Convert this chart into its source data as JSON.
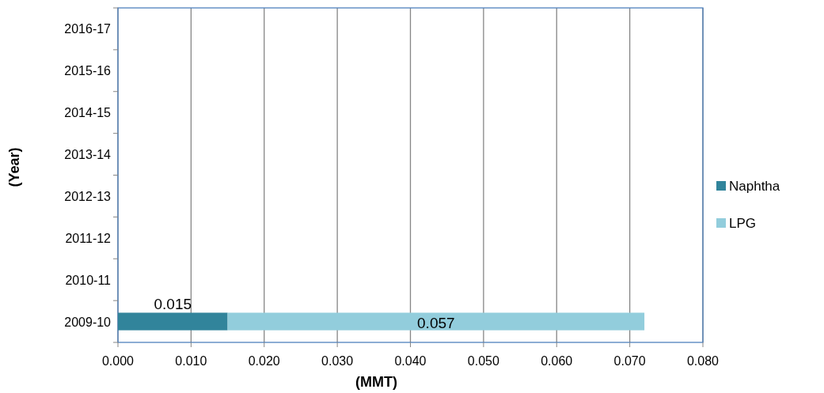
{
  "chart_data": {
    "type": "bar",
    "orientation": "horizontal",
    "stacked": true,
    "xlabel": "(MMT)",
    "ylabel": "(Year)",
    "categories": [
      "2016-17",
      "2015-16",
      "2014-15",
      "2013-14",
      "2012-13",
      "2011-12",
      "2010-11",
      "2009-10"
    ],
    "series": [
      {
        "name": "Naphtha",
        "color": "#31849b",
        "values": [
          null,
          null,
          null,
          null,
          null,
          null,
          null,
          0.015
        ]
      },
      {
        "name": "LPG",
        "color": "#92cddc",
        "values": [
          null,
          null,
          null,
          null,
          null,
          null,
          null,
          0.057
        ]
      }
    ],
    "xlim": [
      0,
      0.08
    ],
    "xticks": [
      {
        "value": 0,
        "label": "0.000"
      },
      {
        "value": 0.01,
        "label": "0.010"
      },
      {
        "value": 0.02,
        "label": "0.020"
      },
      {
        "value": 0.03,
        "label": "0.030"
      },
      {
        "value": 0.04,
        "label": "0.040"
      },
      {
        "value": 0.05,
        "label": "0.050"
      },
      {
        "value": 0.06,
        "label": "0.060"
      },
      {
        "value": 0.07,
        "label": "0.070"
      },
      {
        "value": 0.08,
        "label": "0.080"
      }
    ],
    "grid": "x",
    "legend": "right",
    "data_labels": true
  }
}
